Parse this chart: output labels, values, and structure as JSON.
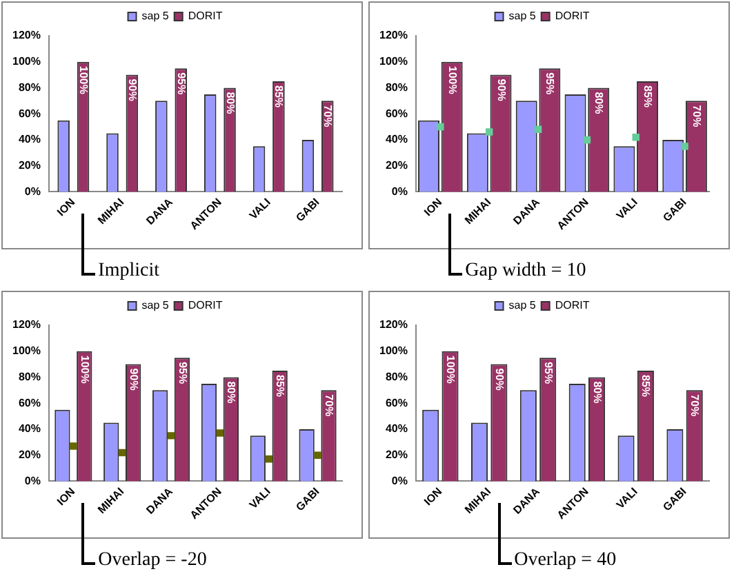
{
  "chart_data": [
    {
      "type": "bar",
      "categories": [
        "ION",
        "MIHAI",
        "DANA",
        "ANTON",
        "VALI",
        "GABI"
      ],
      "ylim": [
        0,
        120
      ],
      "yticks": [
        {
          "value": 0,
          "label": "0%"
        },
        {
          "value": 20,
          "label": "20%"
        },
        {
          "value": 40,
          "label": "40%"
        },
        {
          "value": 60,
          "label": "60%"
        },
        {
          "value": 80,
          "label": "80%"
        },
        {
          "value": 100,
          "label": "100%"
        },
        {
          "value": 120,
          "label": "120%"
        }
      ],
      "legend": "top",
      "annotations": [
        "Implicit"
      ],
      "series": [
        {
          "name": "sap 5",
          "color": "#9999ff",
          "values": [
            55,
            45,
            70,
            75,
            35,
            40
          ]
        },
        {
          "name": "DORIT",
          "color": "#993366",
          "values": [
            100,
            90,
            95,
            80,
            85,
            70
          ],
          "value_labels": [
            "100%",
            "90%",
            "95%",
            "80%",
            "85%",
            "70%"
          ]
        }
      ]
    },
    {
      "type": "bar",
      "categories": [
        "ION",
        "MIHAI",
        "DANA",
        "ANTON",
        "VALI",
        "GABI"
      ],
      "ylim": [
        0,
        120
      ],
      "yticks": [
        {
          "value": 0,
          "label": "0%"
        },
        {
          "value": 20,
          "label": "20%"
        },
        {
          "value": 40,
          "label": "40%"
        },
        {
          "value": 60,
          "label": "60%"
        },
        {
          "value": 80,
          "label": "80%"
        },
        {
          "value": 100,
          "label": "100%"
        },
        {
          "value": 120,
          "label": "120%"
        }
      ],
      "legend": "top",
      "marker": "square",
      "annotations": [
        "Gap width = 10"
      ],
      "series": [
        {
          "name": "sap 5",
          "color": "#9999ff",
          "values": [
            55,
            45,
            70,
            75,
            35,
            40
          ]
        },
        {
          "name": "DORIT",
          "color": "#993366",
          "values": [
            100,
            90,
            95,
            80,
            85,
            70
          ],
          "value_labels": [
            "100%",
            "90%",
            "95%",
            "80%",
            "85%",
            "70%"
          ]
        },
        {
          "type": "scatter",
          "color": "#66cc99",
          "x": [
            "ION",
            "MIHAI",
            "DANA",
            "ANTON",
            "VALI",
            "GABI"
          ],
          "values": [
            50,
            46,
            48,
            40,
            42,
            35
          ]
        }
      ]
    },
    {
      "type": "bar",
      "categories": [
        "ION",
        "MIHAI",
        "DANA",
        "ANTON",
        "VALI",
        "GABI"
      ],
      "ylim": [
        0,
        120
      ],
      "yticks": [
        {
          "value": 0,
          "label": "0%"
        },
        {
          "value": 20,
          "label": "20%"
        },
        {
          "value": 40,
          "label": "40%"
        },
        {
          "value": 60,
          "label": "60%"
        },
        {
          "value": 80,
          "label": "80%"
        },
        {
          "value": 100,
          "label": "100%"
        },
        {
          "value": 120,
          "label": "120%"
        }
      ],
      "legend": "top",
      "marker": "square",
      "annotations": [
        "Overlap = -20"
      ],
      "series": [
        {
          "name": "sap 5",
          "color": "#9999ff",
          "values": [
            55,
            45,
            70,
            75,
            35,
            40
          ]
        },
        {
          "name": "DORIT",
          "color": "#993366",
          "values": [
            100,
            90,
            95,
            80,
            85,
            70
          ],
          "value_labels": [
            "100%",
            "90%",
            "95%",
            "80%",
            "85%",
            "70%"
          ]
        },
        {
          "type": "scatter",
          "color": "#666600",
          "x": [
            "ION",
            "MIHAI",
            "DANA",
            "ANTON",
            "VALI",
            "GABI"
          ],
          "values": [
            27,
            22,
            35,
            37,
            17,
            20
          ]
        }
      ]
    },
    {
      "type": "bar",
      "categories": [
        "ION",
        "MIHAI",
        "DANA",
        "ANTON",
        "VALI",
        "GABI"
      ],
      "ylim": [
        0,
        120
      ],
      "yticks": [
        {
          "value": 0,
          "label": "0%"
        },
        {
          "value": 20,
          "label": "20%"
        },
        {
          "value": 40,
          "label": "40%"
        },
        {
          "value": 60,
          "label": "60%"
        },
        {
          "value": 80,
          "label": "80%"
        },
        {
          "value": 100,
          "label": "100%"
        },
        {
          "value": 120,
          "label": "120%"
        }
      ],
      "legend": "top",
      "annotations": [
        "Overlap = 40"
      ],
      "series": [
        {
          "name": "sap 5",
          "color": "#9999ff",
          "values": [
            55,
            45,
            70,
            75,
            35,
            40
          ]
        },
        {
          "name": "DORIT",
          "color": "#993366",
          "values": [
            100,
            90,
            95,
            80,
            85,
            70
          ],
          "value_labels": [
            "100%",
            "90%",
            "95%",
            "80%",
            "85%",
            "70%"
          ]
        }
      ]
    }
  ]
}
